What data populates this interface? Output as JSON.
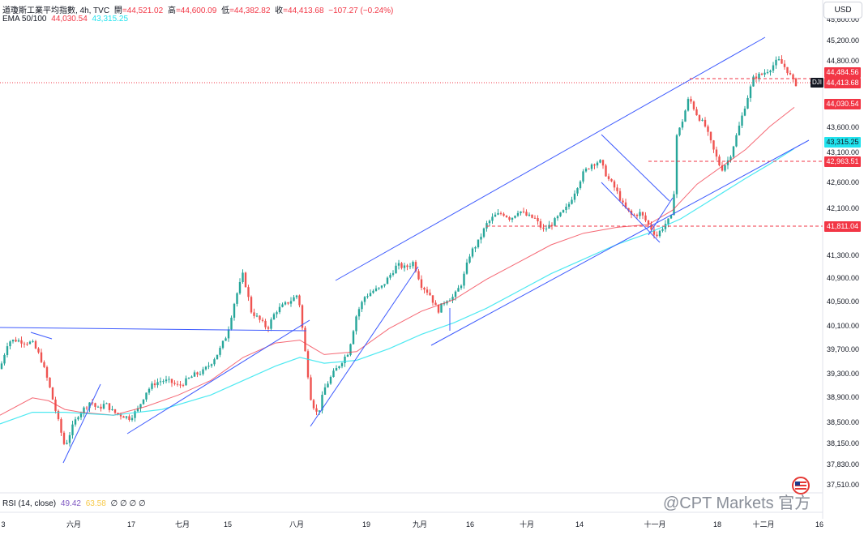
{
  "header": {
    "title": "道瓊斯工業平均指數, 4h, TVC",
    "open_label": "開",
    "open": "=44,521.02",
    "high_label": "高",
    "high": "=44,600.09",
    "low_label": "低",
    "low": "=44,382.82",
    "close_label": "收",
    "close": "=44,413.68",
    "change": "−107.27 (−0.24%)",
    "ema_label": "EMA 50/100",
    "ema50": "44,030.54",
    "ema100": "43,315.25"
  },
  "currency_button": "USD",
  "symbol_badge": "DJI",
  "colors": {
    "up": "#26a69a",
    "down": "#ef5350",
    "ema50": "#f23645",
    "ema100": "#00e5ff",
    "trendline": "#3d5afe",
    "badge_red": "#f23645",
    "badge_cyan": "#22e3ee"
  },
  "chart_data": {
    "type": "candlestick",
    "x_tick_labels": [
      "3",
      "六月",
      "17",
      "七月",
      "15",
      "八月",
      "19",
      "九月",
      "16",
      "十月",
      "14",
      "十一月",
      "18",
      "十二月",
      "16"
    ],
    "y_tick_labels": [
      "45,600.00",
      "45,200.00",
      "44,800.00",
      "43,600.00",
      "43,100.00",
      "42,600.00",
      "42,100.00",
      "41,300.00",
      "40,900.00",
      "40,500.00",
      "40,100.00",
      "39,700.00",
      "39,300.00",
      "38,900.00",
      "38,500.00",
      "38,150.00",
      "37,830.00",
      "37,510.00"
    ],
    "ylim": [
      37400,
      45900
    ],
    "price_markers": [
      {
        "label": "44,484.56",
        "value": 44484.56,
        "color": "#f23645"
      },
      {
        "label": "44,413.68",
        "value": 44413.68,
        "color": "#f23645"
      },
      {
        "label": "44,030.54",
        "value": 44030.54,
        "color": "#f23645"
      },
      {
        "label": "43,315.25",
        "value": 43315.25,
        "color": "#22e3ee"
      },
      {
        "label": "42,963.51",
        "value": 42963.51,
        "color": "#f23645"
      },
      {
        "label": "41,811.04",
        "value": 41811.04,
        "color": "#f23645"
      }
    ],
    "close_path": [
      [
        0,
        39500
      ],
      [
        10,
        39980
      ],
      [
        20,
        40000
      ],
      [
        30,
        39970
      ],
      [
        40,
        39950
      ],
      [
        50,
        39700
      ],
      [
        60,
        39250
      ],
      [
        70,
        38700
      ],
      [
        80,
        38150
      ],
      [
        88,
        38450
      ],
      [
        96,
        38700
      ],
      [
        104,
        38820
      ],
      [
        112,
        38950
      ],
      [
        120,
        38800
      ],
      [
        130,
        38900
      ],
      [
        140,
        38750
      ],
      [
        150,
        38700
      ],
      [
        160,
        38650
      ],
      [
        170,
        38800
      ],
      [
        180,
        39100
      ],
      [
        190,
        39250
      ],
      [
        200,
        39300
      ],
      [
        210,
        39280
      ],
      [
        220,
        39200
      ],
      [
        230,
        39300
      ],
      [
        240,
        39400
      ],
      [
        250,
        39450
      ],
      [
        260,
        39600
      ],
      [
        270,
        39800
      ],
      [
        280,
        40100
      ],
      [
        290,
        40700
      ],
      [
        300,
        41150
      ],
      [
        310,
        40500
      ],
      [
        320,
        40350
      ],
      [
        330,
        40200
      ],
      [
        340,
        40500
      ],
      [
        350,
        40600
      ],
      [
        360,
        40700
      ],
      [
        368,
        40800
      ],
      [
        376,
        39850
      ],
      [
        384,
        38950
      ],
      [
        392,
        38700
      ],
      [
        400,
        39150
      ],
      [
        410,
        39400
      ],
      [
        420,
        39600
      ],
      [
        430,
        39800
      ],
      [
        440,
        40450
      ],
      [
        450,
        40750
      ],
      [
        460,
        40850
      ],
      [
        470,
        40900
      ],
      [
        480,
        41100
      ],
      [
        490,
        41300
      ],
      [
        500,
        41250
      ],
      [
        510,
        41350
      ],
      [
        520,
        40950
      ],
      [
        530,
        40800
      ],
      [
        540,
        40500
      ],
      [
        550,
        40700
      ],
      [
        560,
        40750
      ],
      [
        570,
        41000
      ],
      [
        580,
        41500
      ],
      [
        590,
        41700
      ],
      [
        600,
        42000
      ],
      [
        610,
        42150
      ],
      [
        620,
        42200
      ],
      [
        630,
        42100
      ],
      [
        640,
        42250
      ],
      [
        650,
        42150
      ],
      [
        660,
        42100
      ],
      [
        670,
        41900
      ],
      [
        680,
        42000
      ],
      [
        690,
        42150
      ],
      [
        700,
        42300
      ],
      [
        710,
        42600
      ],
      [
        720,
        42900
      ],
      [
        730,
        43050
      ],
      [
        740,
        43100
      ],
      [
        750,
        42800
      ],
      [
        760,
        42600
      ],
      [
        770,
        42300
      ],
      [
        780,
        42150
      ],
      [
        790,
        42200
      ],
      [
        800,
        42000
      ],
      [
        810,
        41800
      ],
      [
        820,
        42000
      ],
      [
        830,
        42150
      ],
      [
        835,
        43550
      ],
      [
        840,
        43700
      ],
      [
        850,
        44200
      ],
      [
        860,
        43900
      ],
      [
        870,
        43700
      ],
      [
        880,
        43300
      ],
      [
        890,
        42950
      ],
      [
        900,
        43150
      ],
      [
        910,
        43600
      ],
      [
        920,
        44100
      ],
      [
        930,
        44550
      ],
      [
        940,
        44600
      ],
      [
        950,
        44700
      ],
      [
        960,
        44850
      ],
      [
        970,
        44700
      ],
      [
        980,
        44450
      ],
      [
        985,
        44420
      ]
    ],
    "ema50_path": [
      [
        0,
        38700
      ],
      [
        40,
        39000
      ],
      [
        60,
        38950
      ],
      [
        80,
        38800
      ],
      [
        100,
        38750
      ],
      [
        140,
        38700
      ],
      [
        180,
        38850
      ],
      [
        220,
        39050
      ],
      [
        260,
        39300
      ],
      [
        300,
        39700
      ],
      [
        340,
        39950
      ],
      [
        370,
        40000
      ],
      [
        400,
        39750
      ],
      [
        440,
        39800
      ],
      [
        480,
        40200
      ],
      [
        520,
        40500
      ],
      [
        560,
        40700
      ],
      [
        600,
        41050
      ],
      [
        640,
        41350
      ],
      [
        680,
        41650
      ],
      [
        720,
        41850
      ],
      [
        760,
        41950
      ],
      [
        800,
        42000
      ],
      [
        830,
        42250
      ],
      [
        860,
        42700
      ],
      [
        890,
        43000
      ],
      [
        920,
        43300
      ],
      [
        950,
        43700
      ],
      [
        980,
        44030
      ]
    ],
    "ema100_path": [
      [
        0,
        38550
      ],
      [
        40,
        38750
      ],
      [
        80,
        38750
      ],
      [
        140,
        38700
      ],
      [
        200,
        38800
      ],
      [
        260,
        39050
      ],
      [
        300,
        39300
      ],
      [
        340,
        39550
      ],
      [
        370,
        39700
      ],
      [
        400,
        39600
      ],
      [
        440,
        39650
      ],
      [
        480,
        39850
      ],
      [
        520,
        40100
      ],
      [
        560,
        40300
      ],
      [
        600,
        40550
      ],
      [
        640,
        40850
      ],
      [
        680,
        41150
      ],
      [
        720,
        41400
      ],
      [
        760,
        41650
      ],
      [
        800,
        41850
      ],
      [
        840,
        42100
      ],
      [
        880,
        42450
      ],
      [
        920,
        42800
      ],
      [
        950,
        43050
      ],
      [
        980,
        43315
      ]
    ]
  },
  "rsi": {
    "label": "RSI (14, close)",
    "value1": "49.42",
    "value2": "63.58",
    "empties": "∅ ∅ ∅ ∅"
  },
  "watermark": "@CPT Markets 官方"
}
